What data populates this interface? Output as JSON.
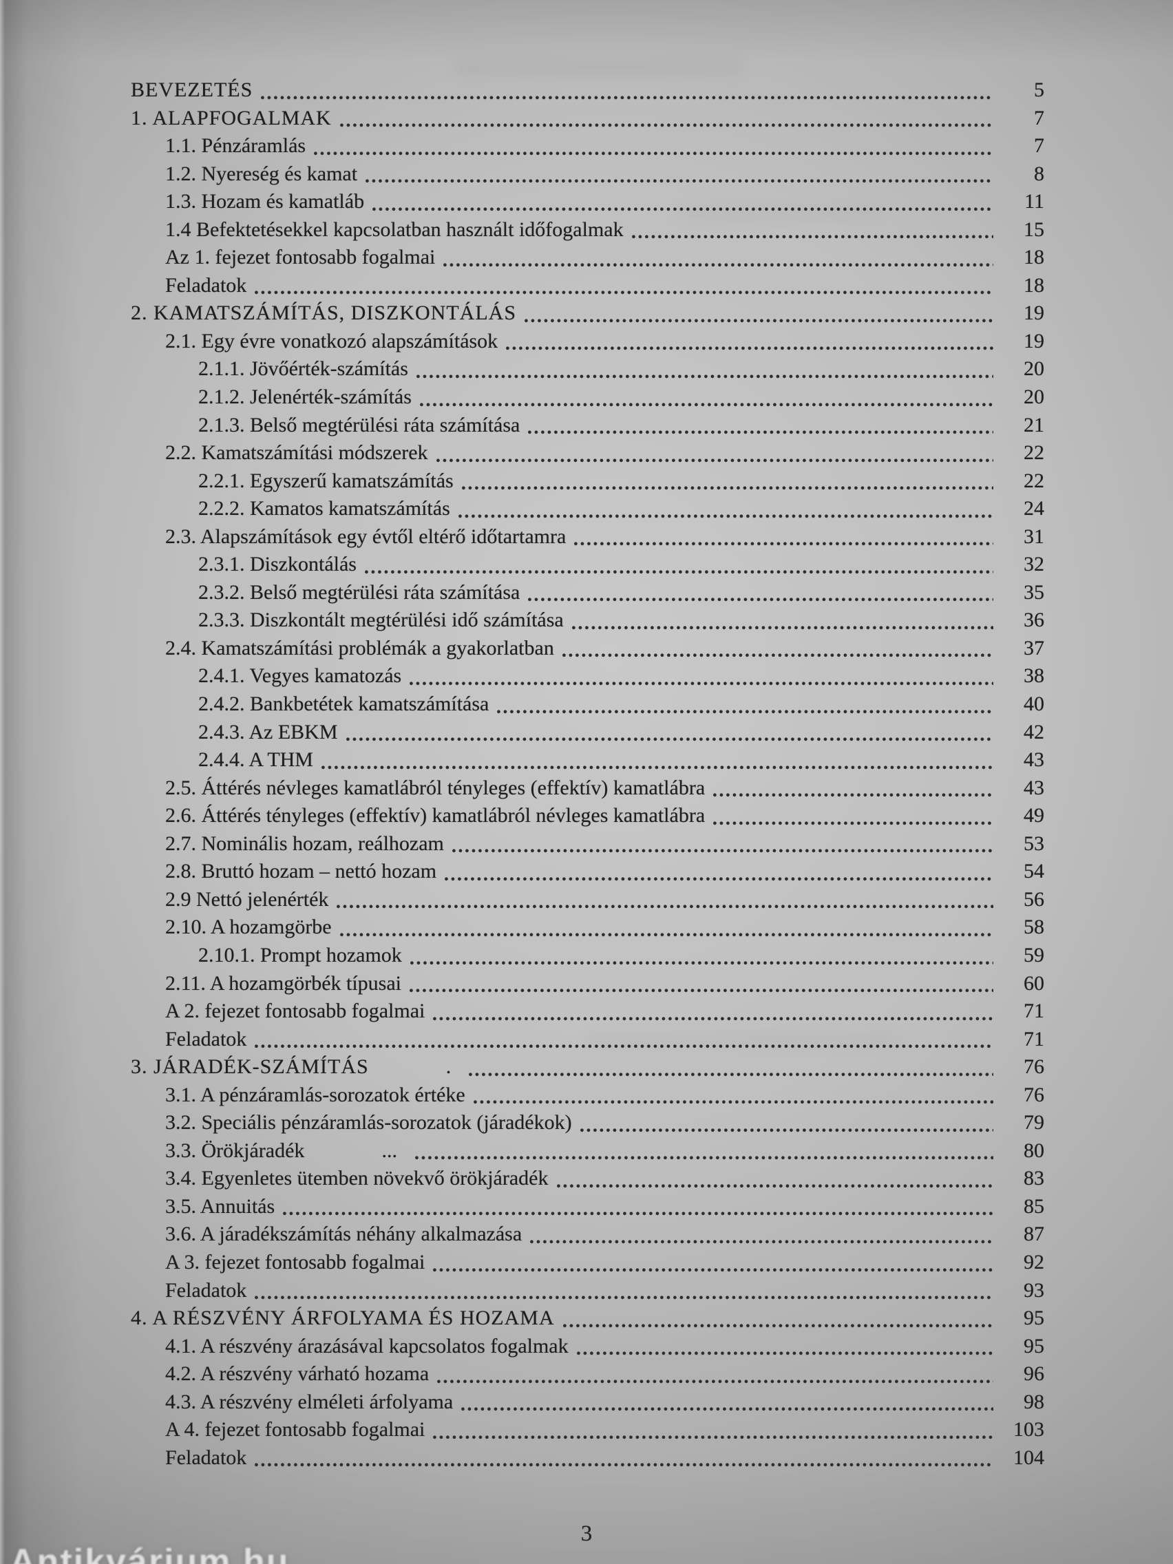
{
  "page": {
    "footer_page_number": "3",
    "watermark_text": "Antikvárium.hu",
    "paper_color": "#bfbfbf",
    "ink_color": "#1e1e1e"
  },
  "toc": {
    "entries": [
      {
        "level": 0,
        "label": "BEVEZETÉS",
        "page": "5"
      },
      {
        "level": 0,
        "label": "1. ALAPFOGALMAK",
        "page": "7"
      },
      {
        "level": 1,
        "label": "1.1. Pénzáramlás",
        "page": "7"
      },
      {
        "level": 1,
        "label": "1.2. Nyereség és kamat",
        "page": "8"
      },
      {
        "level": 1,
        "label": "1.3. Hozam és kamatláb",
        "page": "11"
      },
      {
        "level": 1,
        "label": "1.4 Befektetésekkel kapcsolatban használt időfogalmak",
        "page": "15"
      },
      {
        "level": 1,
        "label": "Az 1. fejezet fontosabb fogalmai",
        "page": "18"
      },
      {
        "level": 1,
        "label": "Feladatok",
        "page": "18"
      },
      {
        "level": 0,
        "label": "2. KAMATSZÁMÍTÁS, DISZKONTÁLÁS",
        "page": "19"
      },
      {
        "level": 1,
        "label": "2.1. Egy évre vonatkozó alapszámítások",
        "page": "19"
      },
      {
        "level": 2,
        "label": "2.1.1. Jövőérték-számítás",
        "page": "20"
      },
      {
        "level": 2,
        "label": "2.1.2. Jelenérték-számítás",
        "page": "20"
      },
      {
        "level": 2,
        "label": "2.1.3. Belső megtérülési ráta számítása",
        "page": "21"
      },
      {
        "level": 1,
        "label": "2.2. Kamatszámítási módszerek",
        "page": "22"
      },
      {
        "level": 2,
        "label": "2.2.1. Egyszerű kamatszámítás",
        "page": "22"
      },
      {
        "level": 2,
        "label": "2.2.2. Kamatos kamatszámítás",
        "page": "24"
      },
      {
        "level": 1,
        "label": "2.3. Alapszámítások egy évtől eltérő időtartamra",
        "page": "31"
      },
      {
        "level": 2,
        "label": "2.3.1. Diszkontálás",
        "page": "32"
      },
      {
        "level": 2,
        "label": "2.3.2. Belső megtérülési ráta számítása",
        "page": "35"
      },
      {
        "level": 2,
        "label": "2.3.3. Diszkontált megtérülési idő számítása",
        "page": "36"
      },
      {
        "level": 1,
        "label": "2.4. Kamatszámítási problémák a gyakorlatban",
        "page": "37"
      },
      {
        "level": 2,
        "label": "2.4.1. Vegyes kamatozás",
        "page": "38"
      },
      {
        "level": 2,
        "label": "2.4.2. Bankbetétek kamatszámítása",
        "page": "40"
      },
      {
        "level": 2,
        "label": "2.4.3. Az EBKM",
        "page": "42"
      },
      {
        "level": 2,
        "label": "2.4.4. A THM",
        "page": "43"
      },
      {
        "level": 1,
        "label": "2.5. Áttérés névleges kamatlábról tényleges (effektív) kamatlábra",
        "page": "43"
      },
      {
        "level": 1,
        "label": "2.6. Áttérés tényleges (effektív) kamatlábról névleges kamatlábra",
        "page": "49"
      },
      {
        "level": 1,
        "label": "2.7. Nominális hozam, reálhozam",
        "page": "53"
      },
      {
        "level": 1,
        "label": "2.8. Bruttó hozam – nettó hozam",
        "page": "54"
      },
      {
        "level": 1,
        "label": "2.9 Nettó jelenérték",
        "page": "56"
      },
      {
        "level": 1,
        "label": "2.10. A hozamgörbe",
        "page": "58"
      },
      {
        "level": 2,
        "label": "2.10.1. Prompt hozamok",
        "page": "59"
      },
      {
        "level": 1,
        "label": "2.11. A hozamgörbék típusai",
        "page": "60"
      },
      {
        "level": 1,
        "label": "A 2. fejezet fontosabb fogalmai",
        "page": "71"
      },
      {
        "level": 1,
        "label": "Feladatok",
        "page": "71"
      },
      {
        "level": 0,
        "label": "3. JÁRADÉK-SZÁMÍTÁS",
        "page": "76",
        "gap": "."
      },
      {
        "level": 1,
        "label": "3.1. A pénzáramlás-sorozatok értéke",
        "page": "76"
      },
      {
        "level": 1,
        "label": "3.2. Speciális pénzáramlás-sorozatok (járadékok)",
        "page": "79"
      },
      {
        "level": 1,
        "label": "3.3. Örökjáradék",
        "page": "80",
        "gap": "..."
      },
      {
        "level": 1,
        "label": "3.4. Egyenletes ütemben növekvő örökjáradék",
        "page": "83"
      },
      {
        "level": 1,
        "label": "3.5. Annuitás",
        "page": "85"
      },
      {
        "level": 1,
        "label": "3.6. A járadékszámítás néhány alkalmazása",
        "page": "87"
      },
      {
        "level": 1,
        "label": "A 3. fejezet fontosabb fogalmai",
        "page": "92"
      },
      {
        "level": 1,
        "label": "Feladatok",
        "page": "93"
      },
      {
        "level": 0,
        "label": "4. A RÉSZVÉNY ÁRFOLYAMA ÉS HOZAMA",
        "page": "95"
      },
      {
        "level": 1,
        "label": "4.1. A részvény árazásával kapcsolatos fogalmak",
        "page": "95"
      },
      {
        "level": 1,
        "label": "4.2. A részvény várható hozama",
        "page": "96"
      },
      {
        "level": 1,
        "label": "4.3. A részvény elméleti árfolyama",
        "page": "98"
      },
      {
        "level": 1,
        "label": "A 4. fejezet fontosabb fogalmai",
        "page": "103"
      },
      {
        "level": 1,
        "label": "Feladatok",
        "page": "104"
      }
    ]
  }
}
